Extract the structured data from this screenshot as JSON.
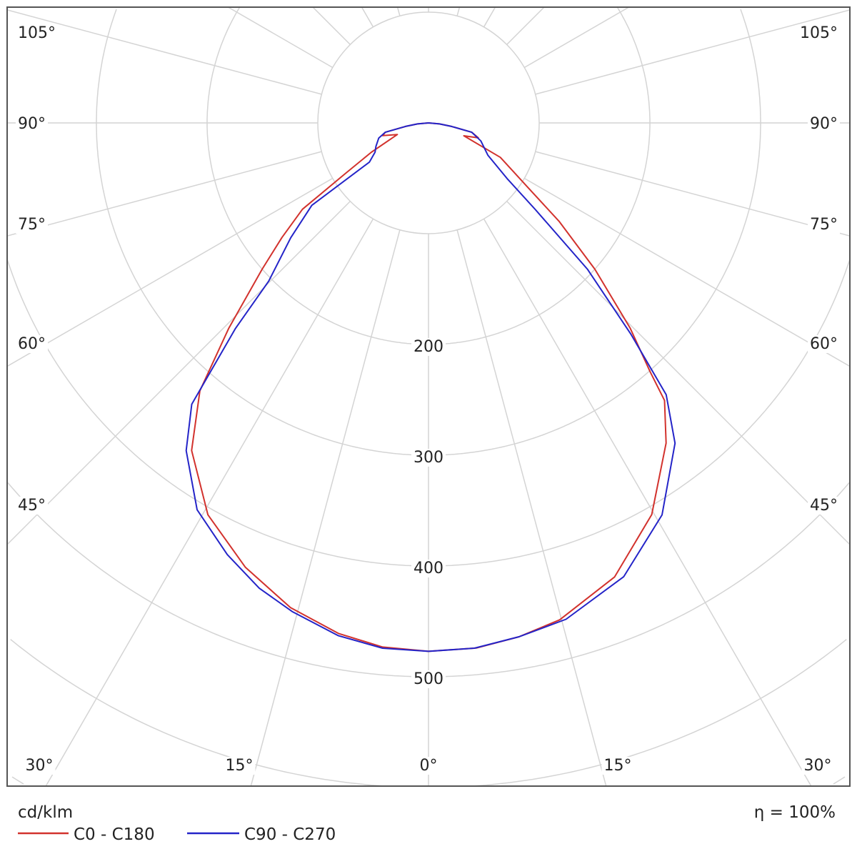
{
  "chart_data": {
    "type": "polar",
    "unit_label": "cd/klm",
    "efficiency_label": "η = 100%",
    "radial_ticks": [
      200,
      300,
      400,
      500
    ],
    "radial_grid_step": 100,
    "angle_grid_step_deg": 15,
    "angle_labels": {
      "left": [
        "105°",
        "90°",
        "75°",
        "60°",
        "45°"
      ],
      "right": [
        "105°",
        "90°",
        "75°",
        "60°",
        "45°"
      ],
      "bottom": [
        "30°",
        "15°",
        "0°",
        "15°",
        "30°"
      ]
    },
    "grid": true,
    "legend_position": "bottom-left",
    "series": [
      {
        "name": "C0 - C180",
        "color": "#d2322d",
        "left": [
          [
            0,
            477
          ],
          [
            5,
            475
          ],
          [
            10,
            468
          ],
          [
            15.9,
            455
          ],
          [
            22.4,
            434
          ],
          [
            29.4,
            406
          ],
          [
            35.9,
            365
          ],
          [
            40.5,
            318
          ],
          [
            44.2,
            259
          ],
          [
            48.7,
            200
          ],
          [
            52,
            168
          ],
          [
            55.6,
            138
          ],
          [
            58.7,
            88
          ],
          [
            62.9,
            58
          ],
          [
            69.6,
            30
          ],
          [
            74.5,
            43
          ],
          [
            77.8,
            40
          ],
          [
            81.4,
            21
          ],
          [
            85,
            10
          ],
          [
            90,
            0
          ]
        ],
        "right": [
          [
            0,
            477
          ],
          [
            5.2,
            476
          ],
          [
            10,
            471
          ],
          [
            14.8,
            464
          ],
          [
            22.3,
            443
          ],
          [
            29.7,
            407
          ],
          [
            36.6,
            360
          ],
          [
            40.4,
            329
          ],
          [
            41.7,
            301
          ],
          [
            44.5,
            260
          ],
          [
            48.7,
            200
          ],
          [
            53,
            148
          ],
          [
            57.3,
            105
          ],
          [
            64.4,
            72
          ],
          [
            70,
            34
          ],
          [
            73.3,
            47
          ],
          [
            77.8,
            40
          ],
          [
            81.4,
            21
          ],
          [
            85,
            10
          ],
          [
            90,
            0
          ]
        ]
      },
      {
        "name": "C90 - C270",
        "color": "#2424c8",
        "left": [
          [
            0,
            477
          ],
          [
            5,
            476
          ],
          [
            10,
            470
          ],
          [
            15.6,
            458
          ],
          [
            20,
            447
          ],
          [
            25,
            430
          ],
          [
            30.9,
            407
          ],
          [
            36.5,
            368
          ],
          [
            40.1,
            332
          ],
          [
            43.2,
            255
          ],
          [
            45.3,
            203
          ],
          [
            50.2,
            162
          ],
          [
            54.8,
            129
          ],
          [
            56.5,
            64
          ],
          [
            61.3,
            55
          ],
          [
            66,
            52
          ],
          [
            73,
            47
          ],
          [
            77.8,
            40
          ],
          [
            81.4,
            21
          ],
          [
            85,
            10
          ],
          [
            90,
            0
          ]
        ],
        "right": [
          [
            0,
            477
          ],
          [
            5,
            476
          ],
          [
            10,
            471
          ],
          [
            15.5,
            465
          ],
          [
            23.3,
            446
          ],
          [
            30.8,
            412
          ],
          [
            37.6,
            365
          ],
          [
            41.2,
            326
          ],
          [
            43.8,
            264
          ],
          [
            47.4,
            195
          ],
          [
            51,
            124
          ],
          [
            54.7,
            87
          ],
          [
            61.5,
            61
          ],
          [
            71,
            50
          ],
          [
            77.8,
            40
          ],
          [
            81.4,
            21
          ],
          [
            85,
            10
          ],
          [
            90,
            0
          ]
        ]
      }
    ]
  }
}
